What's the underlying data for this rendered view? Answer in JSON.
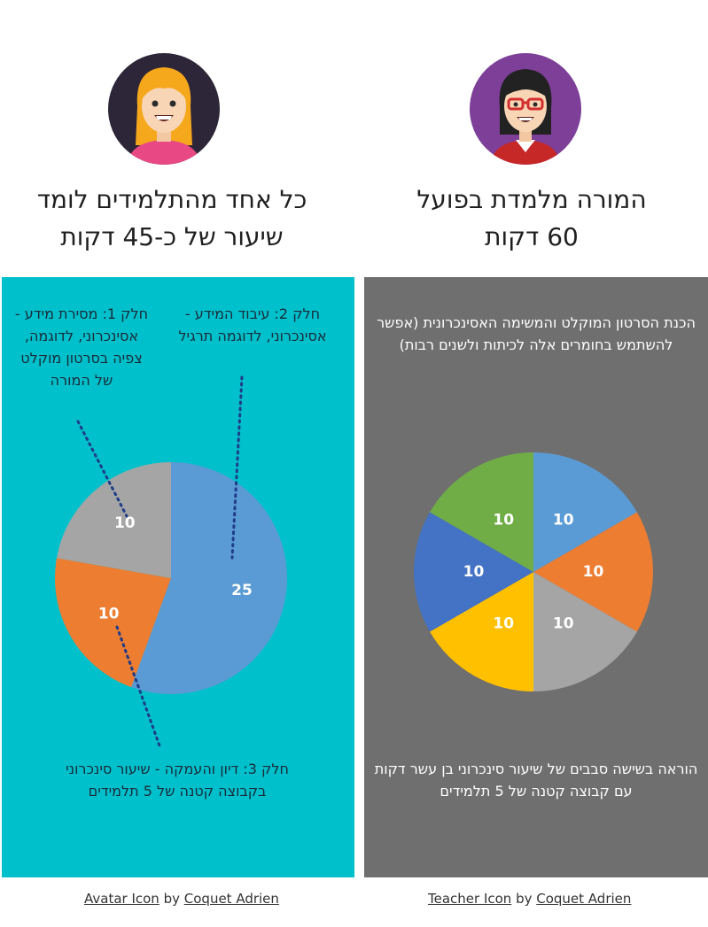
{
  "left": {
    "heading_line1": "כל אחד מהתלמידים לומד",
    "heading_line2": "שיעור של  כ-45 דקות",
    "part1_note": "חלק 1: מסירת מידע - אסינכרוני, לדוגמה, צפיה בסרטון מוקלט של המורה",
    "part2_note": "חלק 2: עיבוד המידע - אסינכרוני, לדוגמה תרגיל",
    "part3_note": "חלק 3: דיון והעמקה  - שיעור סינכרוני בקבוצה קטנה של 5 תלמידים",
    "panel_color": "#00c0cb",
    "avatar_icon": "student-girl-avatar-icon"
  },
  "right": {
    "heading_line1": "המורה מלמדת בפועל",
    "heading_line2": "60 דקות",
    "prep_note": "הכנת הסרטון המוקלט והמשימה האסינכרונית (אפשר להשתמש בחומרים אלה לכיתות ולשנים רבות)",
    "teach_note": "הוראה בשישה סבבים של שיעור סינכרוני בן עשר דקות עם קבוצה קטנה של 5 תלמידים",
    "panel_color": "#6f6f6f",
    "avatar_icon": "teacher-avatar-icon"
  },
  "credits": {
    "left_link": "Avatar Icon",
    "left_by": " by ",
    "left_author": "Coquet Adrien",
    "right_link": "Teacher Icon",
    "right_by": " by ",
    "right_author": "Coquet Adrien"
  },
  "chart_data": [
    {
      "type": "pie",
      "title": "",
      "values": [
        25,
        10,
        10
      ],
      "labels": [
        "25",
        "10",
        "10"
      ],
      "colors": [
        "#5b9bd5",
        "#ed7d31",
        "#a5a5a5"
      ]
    },
    {
      "type": "pie",
      "title": "",
      "values": [
        10,
        10,
        10,
        10,
        10,
        10
      ],
      "labels": [
        "10",
        "10",
        "10",
        "10",
        "10",
        "10"
      ],
      "colors": [
        "#5b9bd5",
        "#ed7d31",
        "#a5a5a5",
        "#ffc000",
        "#4472c4",
        "#70ad47"
      ]
    }
  ]
}
